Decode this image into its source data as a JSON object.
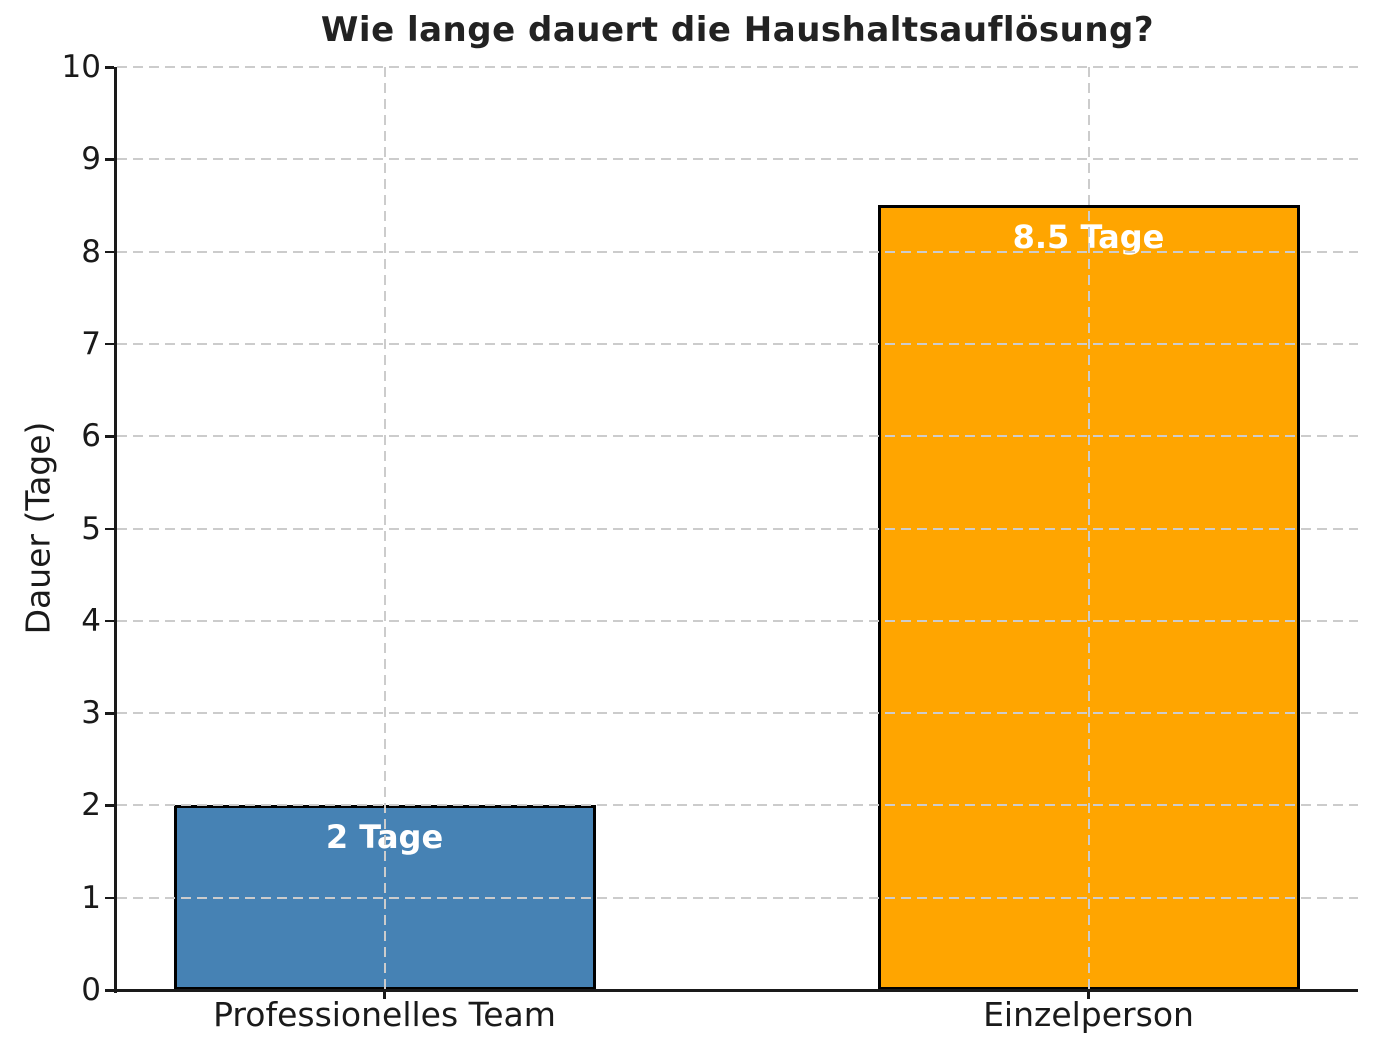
{
  "figure": {
    "background": "#ffffff"
  },
  "chart_data": {
    "type": "bar",
    "title": "Wie lange dauert die Haushaltsauflösung?",
    "categories": [
      "Professionelles Team",
      "Einzelperson"
    ],
    "values": [
      2,
      8.5
    ],
    "bar_labels": [
      "2 Tage",
      "8.5 Tage"
    ],
    "bar_colors": [
      "#4682B4",
      "#FFA500"
    ],
    "bar_edge_color": "#000000",
    "bar_label_color": "#ffffff",
    "xlabel": "",
    "ylabel": "Dauer (Tage)",
    "ylim": [
      0,
      10
    ],
    "yticks": [
      0,
      1,
      2,
      3,
      4,
      5,
      6,
      7,
      8,
      9,
      10
    ],
    "grid": "dashed",
    "grid_on": true,
    "grid_color": "#cccccc",
    "axis_color": "#1a1a1a",
    "title_color": "#222222",
    "tick_label_color": "#1a1a1a",
    "legend_position": "none"
  }
}
